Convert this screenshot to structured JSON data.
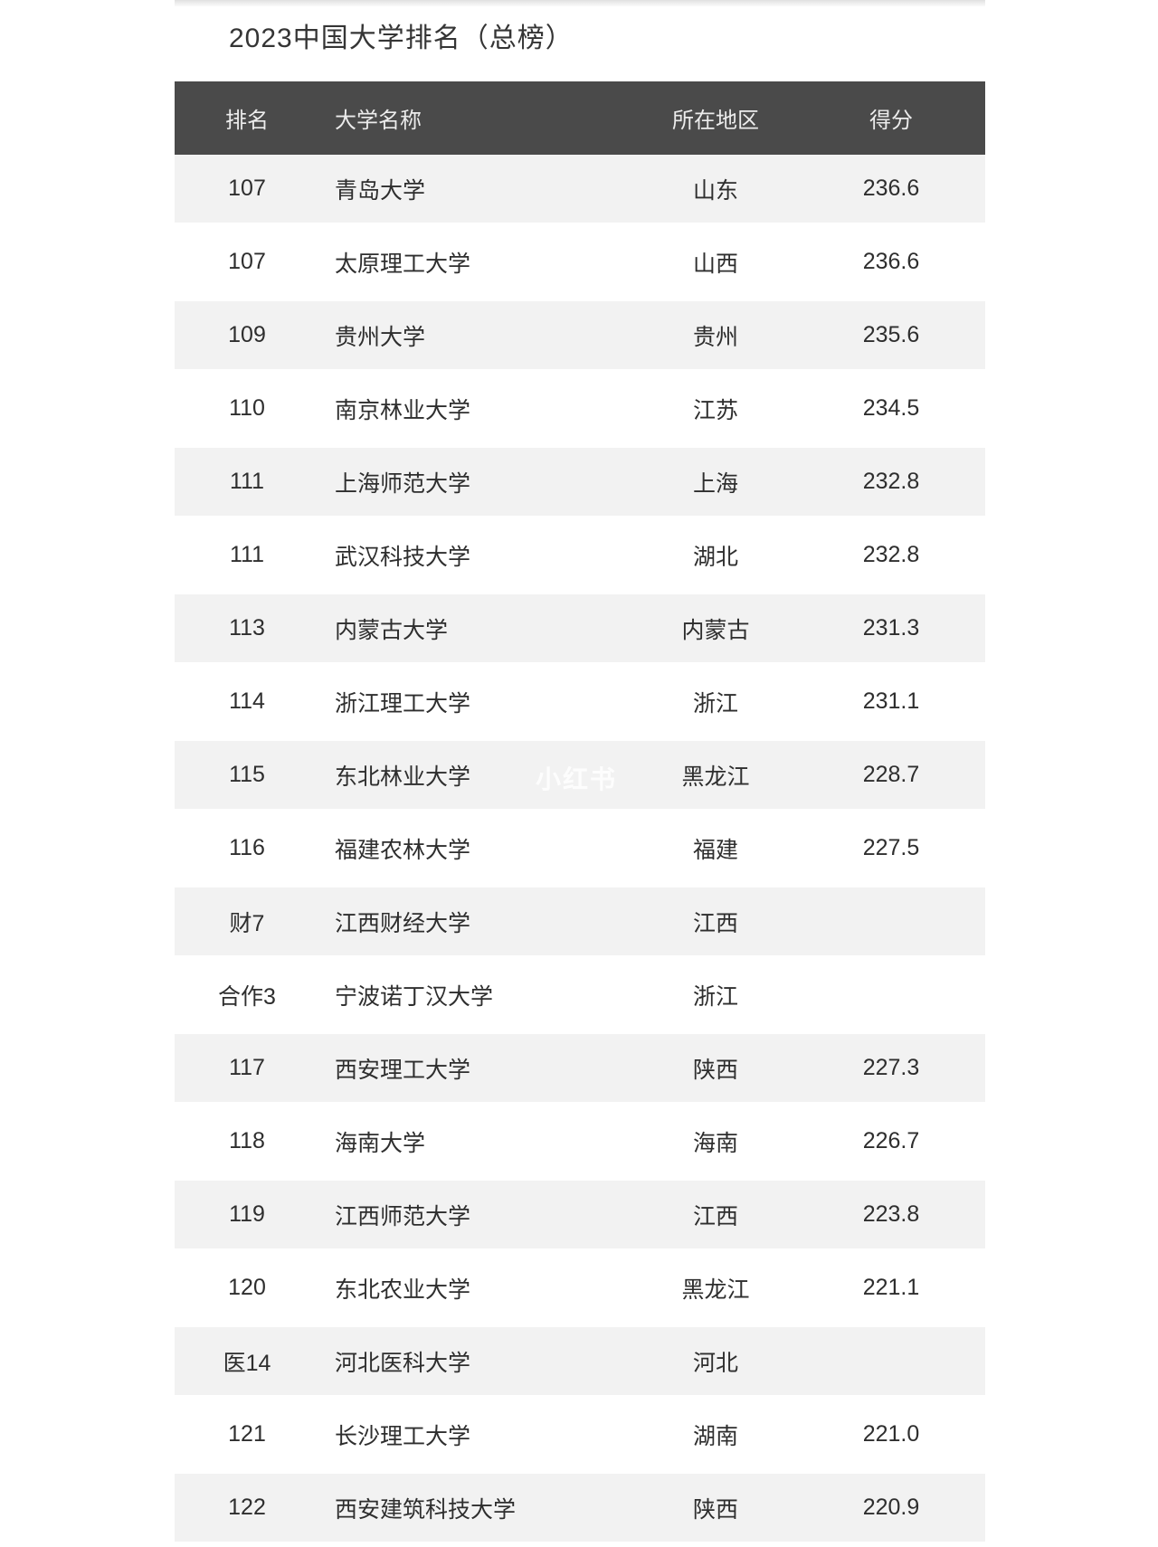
{
  "title": "2023中国大学排名（总榜）",
  "watermark": "小红书",
  "colors": {
    "header_bg": "#4a4a4a",
    "header_text": "#ececec",
    "row_alt_bg": "#f2f2f2",
    "row_bg": "#ffffff",
    "body_text": "#2e2e2e",
    "title_text": "#353535"
  },
  "chart_data": {
    "type": "table",
    "title": "2023中国大学排名（总榜）",
    "columns": [
      "排名",
      "大学名称",
      "所在地区",
      "得分"
    ],
    "rows": [
      {
        "rank": "107",
        "name": "青岛大学",
        "region": "山东",
        "score": "236.6"
      },
      {
        "rank": "107",
        "name": "太原理工大学",
        "region": "山西",
        "score": "236.6"
      },
      {
        "rank": "109",
        "name": "贵州大学",
        "region": "贵州",
        "score": "235.6"
      },
      {
        "rank": "110",
        "name": "南京林业大学",
        "region": "江苏",
        "score": "234.5"
      },
      {
        "rank": "111",
        "name": "上海师范大学",
        "region": "上海",
        "score": "232.8"
      },
      {
        "rank": "111",
        "name": "武汉科技大学",
        "region": "湖北",
        "score": "232.8"
      },
      {
        "rank": "113",
        "name": "内蒙古大学",
        "region": "内蒙古",
        "score": "231.3"
      },
      {
        "rank": "114",
        "name": "浙江理工大学",
        "region": "浙江",
        "score": "231.1"
      },
      {
        "rank": "115",
        "name": "东北林业大学",
        "region": "黑龙江",
        "score": "228.7"
      },
      {
        "rank": "116",
        "name": "福建农林大学",
        "region": "福建",
        "score": "227.5"
      },
      {
        "rank": "财7",
        "name": "江西财经大学",
        "region": "江西",
        "score": ""
      },
      {
        "rank": "合作3",
        "name": "宁波诺丁汉大学",
        "region": "浙江",
        "score": ""
      },
      {
        "rank": "117",
        "name": "西安理工大学",
        "region": "陕西",
        "score": "227.3"
      },
      {
        "rank": "118",
        "name": "海南大学",
        "region": "海南",
        "score": "226.7"
      },
      {
        "rank": "119",
        "name": "江西师范大学",
        "region": "江西",
        "score": "223.8"
      },
      {
        "rank": "120",
        "name": "东北农业大学",
        "region": "黑龙江",
        "score": "221.1"
      },
      {
        "rank": "医14",
        "name": "河北医科大学",
        "region": "河北",
        "score": ""
      },
      {
        "rank": "121",
        "name": "长沙理工大学",
        "region": "湖南",
        "score": "221.0"
      },
      {
        "rank": "122",
        "name": "西安建筑科技大学",
        "region": "陕西",
        "score": "220.9"
      }
    ]
  }
}
